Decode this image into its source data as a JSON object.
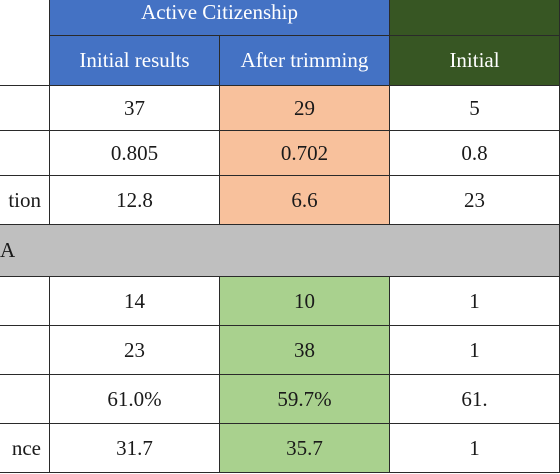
{
  "header": {
    "group1": "Active Citizenship",
    "group2": "",
    "sub": [
      "Initial results",
      "After trimming",
      "Initial"
    ]
  },
  "rows_top": [
    {
      "label": "",
      "values": [
        "37",
        "29",
        "5"
      ]
    },
    {
      "label": "",
      "values": [
        "0.805",
        "0.702",
        "0.8"
      ]
    },
    {
      "label": "tion",
      "values": [
        "12.8",
        "6.6",
        "23"
      ]
    }
  ],
  "section": {
    "label": "A"
  },
  "rows_bottom": [
    {
      "label": "",
      "values": [
        "14",
        "10",
        "1"
      ]
    },
    {
      "label": "",
      "values": [
        "23",
        "38",
        "1"
      ]
    },
    {
      "label": "",
      "values": [
        "61.0%",
        "59.7%",
        "61."
      ]
    },
    {
      "label": "nce",
      "values": [
        "31.7",
        "35.7",
        "1"
      ]
    }
  ],
  "colors": {
    "header_blue": "#4472c4",
    "header_darkgreen": "#375623",
    "highlight_orange": "#f8c19c",
    "highlight_green": "#a9d18e",
    "section_gray": "#bfbfbf"
  }
}
